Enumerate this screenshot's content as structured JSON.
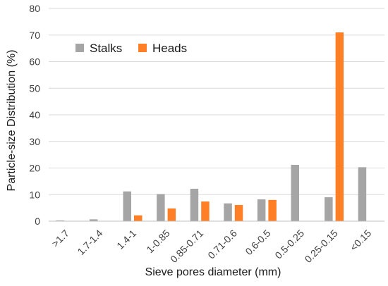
{
  "chart_data": {
    "type": "bar",
    "xlabel": "Sieve pores diameter (mm)",
    "ylabel": "Particle-size Distribution (%)",
    "ylim": [
      0,
      80
    ],
    "yticks": [
      0,
      10,
      20,
      30,
      40,
      50,
      60,
      70,
      80
    ],
    "grid": "horizontal",
    "legend_position": "top-left",
    "categories": [
      ">1.7",
      "1.7-1.4",
      "1.4-1",
      "1-0.85",
      "0.85-0.71",
      "0.71-0.6",
      "0.6-0.5",
      "0.5-0.25",
      "0.25-0.15",
      "<0.15"
    ],
    "series": [
      {
        "name": "Stalks",
        "color": "#a5a5a5",
        "values": [
          0.3,
          0.7,
          11.2,
          10.2,
          12.2,
          6.7,
          8.2,
          21.2,
          9.0,
          20.3
        ]
      },
      {
        "name": "Heads",
        "color": "#ff7f27",
        "values": [
          0,
          0,
          2.2,
          4.8,
          7.4,
          6.1,
          8.0,
          0,
          71.0,
          0
        ]
      }
    ]
  }
}
